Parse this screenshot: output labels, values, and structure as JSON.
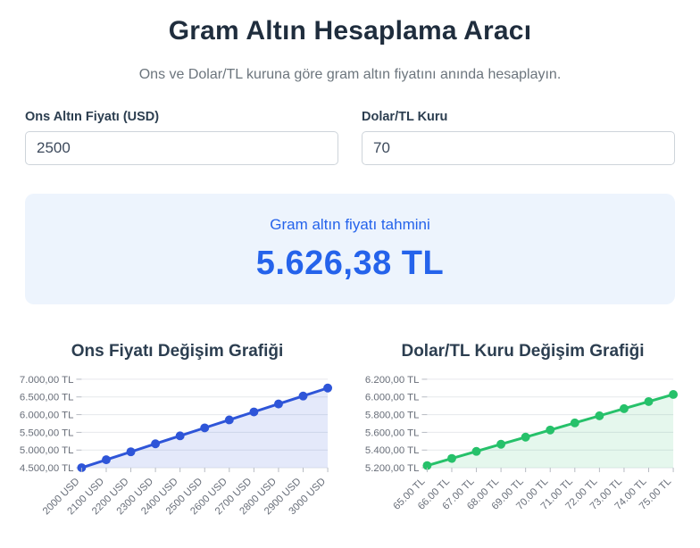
{
  "header": {
    "title": "Gram Altın Hesaplama Aracı",
    "subtitle": "Ons ve Dolar/TL kuruna göre gram altın fiyatını anında hesaplayın."
  },
  "inputs": {
    "ons": {
      "label": "Ons Altın Fiyatı (USD)",
      "value": "2500"
    },
    "kur": {
      "label": "Dolar/TL Kuru",
      "value": "70"
    }
  },
  "result": {
    "label": "Gram altın fiyatı tahmini",
    "value": "5.626,38 TL",
    "background_color": "#edf4fd",
    "text_color": "#2563eb"
  },
  "chart_style": {
    "grid_color": "#e6e8ec",
    "tick_color": "#b6bac2",
    "label_color": "#686e79"
  },
  "chart_data": [
    {
      "type": "area",
      "title": "Ons Fiyatı Değişim Grafiği",
      "categories": [
        "2000 USD",
        "2100 USD",
        "2200 USD",
        "2300 USD",
        "2400 USD",
        "2500 USD",
        "2600 USD",
        "2700 USD",
        "2800 USD",
        "2900 USD",
        "3000 USD"
      ],
      "values": [
        4501.1,
        4726.15,
        4951.21,
        5176.27,
        5401.32,
        5626.38,
        5851.43,
        6076.49,
        6301.54,
        6526.6,
        6751.65
      ],
      "xlabel": "",
      "ylabel": "",
      "ylim": [
        4500,
        7000
      ],
      "y_tick_values": [
        4500,
        5000,
        5500,
        6000,
        6500,
        7000
      ],
      "y_tick_labels": [
        "4.500,00 TL",
        "5.000,00 TL",
        "5.500,00 TL",
        "6.000,00 TL",
        "6.500,00 TL",
        "7.000,00 TL"
      ],
      "grid": true,
      "legend": "none",
      "line_color": "#2e55d8",
      "fill_color": "rgba(46,85,216,0.13)"
    },
    {
      "type": "area",
      "title": "Dolar/TL Kuru Değişim Grafiği",
      "categories": [
        "65.00 TL",
        "66.00 TL",
        "67.00 TL",
        "68.00 TL",
        "69.00 TL",
        "70.00 TL",
        "71.00 TL",
        "72.00 TL",
        "73.00 TL",
        "74.00 TL",
        "75.00 TL"
      ],
      "values": [
        5224.49,
        5304.87,
        5385.24,
        5465.62,
        5546.0,
        5626.38,
        5706.75,
        5787.13,
        5867.51,
        5947.88,
        6028.26
      ],
      "xlabel": "",
      "ylabel": "",
      "ylim": [
        5200,
        6200
      ],
      "y_tick_values": [
        5200,
        5400,
        5600,
        5800,
        6000,
        6200
      ],
      "y_tick_labels": [
        "5.200,00 TL",
        "5.400,00 TL",
        "5.600,00 TL",
        "5.800,00 TL",
        "6.000,00 TL",
        "6.200,00 TL"
      ],
      "grid": true,
      "legend": "none",
      "line_color": "#26c16a",
      "fill_color": "rgba(38,193,106,0.12)"
    }
  ]
}
